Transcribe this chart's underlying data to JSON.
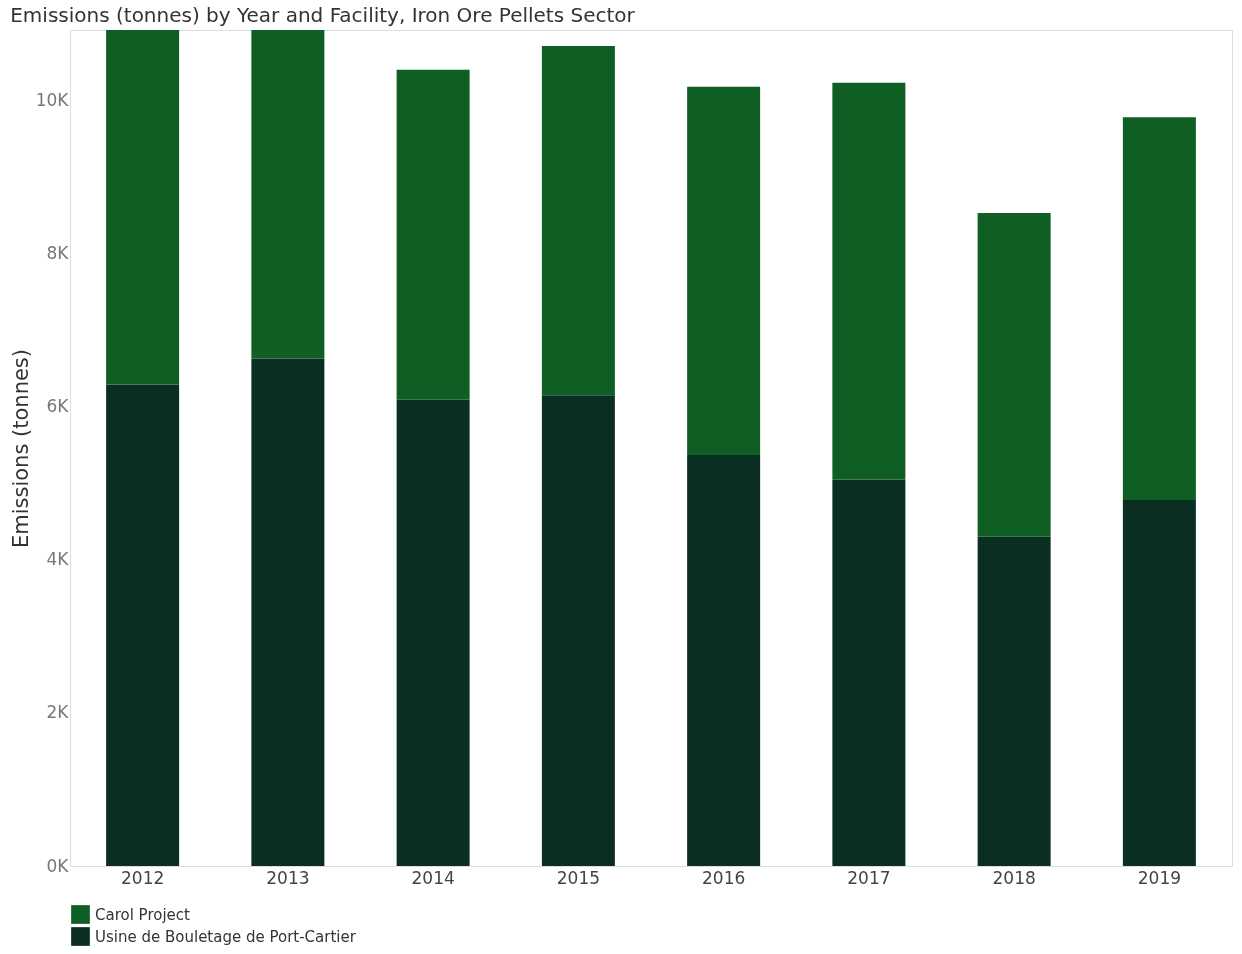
{
  "chart_data": {
    "type": "bar",
    "title": "Emissions (tonnes) by Year and Facility, Iron Ore Pellets Sector",
    "ylabel": "Emissions (tonnes)",
    "categories": [
      "2012",
      "2013",
      "2014",
      "2015",
      "2016",
      "2017",
      "2018",
      "2019"
    ],
    "stacked": true,
    "series": [
      {
        "name": "Usine de Bouletage de Port-Cartier",
        "color": "#0b2e22",
        "values": [
          6290,
          6630,
          6090,
          6150,
          5370,
          5050,
          4300,
          4780
        ]
      },
      {
        "name": "Carol Project",
        "color": "#0f5f24",
        "values": [
          4630,
          4290,
          4310,
          4560,
          4810,
          5180,
          4230,
          5000
        ]
      }
    ],
    "ylim": [
      0,
      10920
    ],
    "yticks": [
      {
        "value": 0,
        "label": "0K"
      },
      {
        "value": 2000,
        "label": "2K"
      },
      {
        "value": 4000,
        "label": "4K"
      },
      {
        "value": 6000,
        "label": "6K"
      },
      {
        "value": 8000,
        "label": "8K"
      },
      {
        "value": 10000,
        "label": "10K"
      }
    ],
    "grid": false,
    "legend": "bottom left"
  }
}
